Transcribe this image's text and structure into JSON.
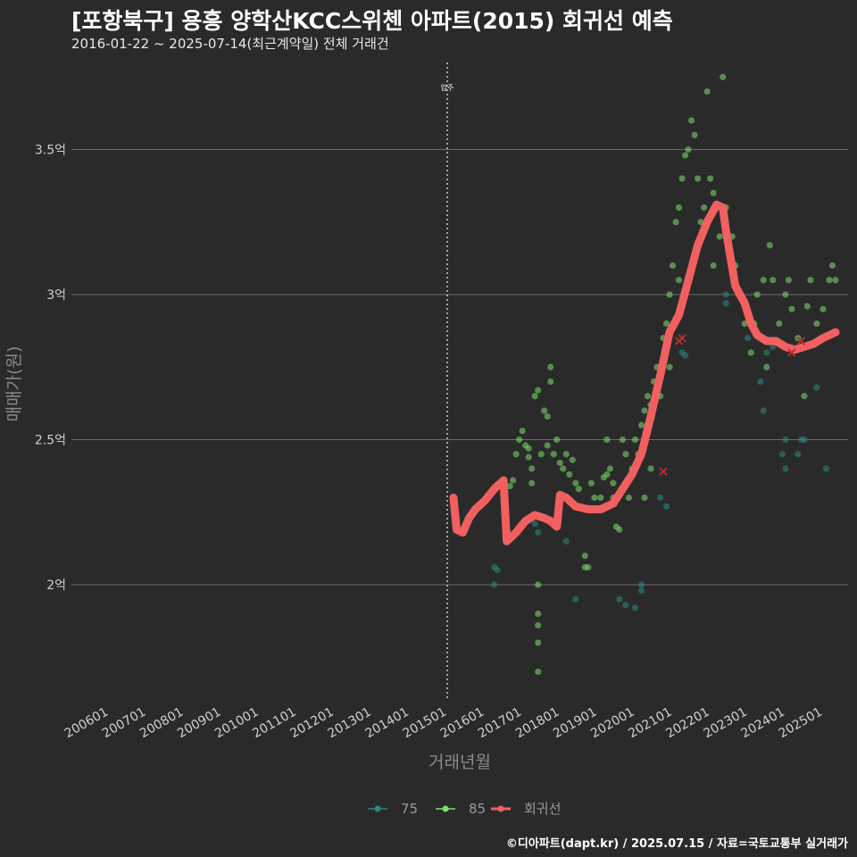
{
  "header": {
    "title": "[포항북구] 용흥 양학산KCC스위첸 아파트(2015) 회귀선 예측",
    "subtitle": "2016-01-22 ~ 2025-07-14(최근계약일) 전체 거래건"
  },
  "footer": {
    "caption": "©디아파트(dapt.kr) / 2025.07.15 / 자료=국토교통부 실거래가"
  },
  "colors": {
    "bg": "#2b2a2b",
    "s75": "#2a8a80",
    "s85": "#7ddf6e",
    "trend": "#f06060",
    "grid": "#6a6a6a"
  },
  "chart_data": {
    "type": "scatter",
    "xlabel": "거래년월",
    "ylabel": "매매가(원)",
    "ylim": [
      1.6,
      3.8
    ],
    "xlim": [
      "2005-01",
      "2025-09"
    ],
    "x_ticks": [
      "200601",
      "200701",
      "200801",
      "200901",
      "201001",
      "201101",
      "201201",
      "201301",
      "201401",
      "201501",
      "201601",
      "201701",
      "201801",
      "201901",
      "202001",
      "202101",
      "202201",
      "202301",
      "202401",
      "202501"
    ],
    "y_ticks": [
      {
        "value": 2.0,
        "label": "2억"
      },
      {
        "value": 2.5,
        "label": "2.5억"
      },
      {
        "value": 3.0,
        "label": "3억"
      },
      {
        "value": 3.5,
        "label": "3.5억"
      }
    ],
    "legend": {
      "position": "bottom",
      "items": [
        {
          "key": "75",
          "label": "75"
        },
        {
          "key": "85",
          "label": "85"
        },
        {
          "key": "trend",
          "label": "회귀선"
        }
      ]
    },
    "annotations": [
      {
        "x": "2015-01",
        "label": "입주",
        "style": "dotted-vline"
      }
    ],
    "series": [
      {
        "name": "75",
        "color": "#2a8a80",
        "points": [
          [
            "2016-04",
            2.06
          ],
          [
            "2016-04",
            2.0
          ],
          [
            "2016-05",
            2.05
          ],
          [
            "2017-05",
            2.21
          ],
          [
            "2017-06",
            2.18
          ],
          [
            "2018-03",
            2.15
          ],
          [
            "2018-06",
            1.95
          ],
          [
            "2019-08",
            1.95
          ],
          [
            "2019-10",
            1.93
          ],
          [
            "2020-01",
            1.92
          ],
          [
            "2020-03",
            2.0
          ],
          [
            "2020-03",
            1.98
          ],
          [
            "2020-09",
            2.3
          ],
          [
            "2020-11",
            2.27
          ],
          [
            "2021-04",
            2.8
          ],
          [
            "2021-05",
            2.79
          ],
          [
            "2022-06",
            2.97
          ],
          [
            "2022-06",
            3.0
          ],
          [
            "2023-01",
            2.85
          ],
          [
            "2023-05",
            2.7
          ],
          [
            "2023-06",
            2.6
          ],
          [
            "2023-07",
            2.8
          ],
          [
            "2023-12",
            2.45
          ],
          [
            "2024-01",
            2.4
          ],
          [
            "2024-01",
            2.5
          ],
          [
            "2024-05",
            2.45
          ],
          [
            "2024-06",
            2.5
          ],
          [
            "2024-07",
            2.5
          ],
          [
            "2025-02",
            2.4
          ],
          [
            "2024-11",
            2.68
          ],
          [
            "2023-09",
            2.82
          ]
        ]
      },
      {
        "name": "85",
        "color": "#7ddf6e",
        "points": [
          [
            "2016-07",
            2.3
          ],
          [
            "2016-09",
            2.34
          ],
          [
            "2016-10",
            2.36
          ],
          [
            "2016-11",
            2.45
          ],
          [
            "2016-12",
            2.5
          ],
          [
            "2017-01",
            2.53
          ],
          [
            "2017-02",
            2.48
          ],
          [
            "2017-03",
            2.47
          ],
          [
            "2017-03",
            2.44
          ],
          [
            "2017-04",
            2.4
          ],
          [
            "2017-04",
            2.35
          ],
          [
            "2017-05",
            2.65
          ],
          [
            "2017-06",
            2.67
          ],
          [
            "2017-07",
            2.45
          ],
          [
            "2017-08",
            2.6
          ],
          [
            "2017-09",
            2.58
          ],
          [
            "2017-09",
            2.48
          ],
          [
            "2017-10",
            2.75
          ],
          [
            "2017-10",
            2.7
          ],
          [
            "2017-11",
            2.45
          ],
          [
            "2017-12",
            2.5
          ],
          [
            "2018-01",
            2.42
          ],
          [
            "2018-02",
            2.4
          ],
          [
            "2018-03",
            2.45
          ],
          [
            "2018-04",
            2.38
          ],
          [
            "2018-05",
            2.43
          ],
          [
            "2018-06",
            2.35
          ],
          [
            "2018-07",
            2.33
          ],
          [
            "2018-09",
            2.1
          ],
          [
            "2018-10",
            2.06
          ],
          [
            "2018-11",
            2.35
          ],
          [
            "2018-12",
            2.3
          ],
          [
            "2019-02",
            2.3
          ],
          [
            "2019-03",
            2.37
          ],
          [
            "2019-04",
            2.38
          ],
          [
            "2019-05",
            2.4
          ],
          [
            "2019-06",
            2.3
          ],
          [
            "2019-07",
            2.2
          ],
          [
            "2019-08",
            2.19
          ],
          [
            "2019-09",
            2.5
          ],
          [
            "2019-10",
            2.45
          ],
          [
            "2019-11",
            2.3
          ],
          [
            "2019-12",
            2.4
          ],
          [
            "2020-01",
            2.5
          ],
          [
            "2020-02",
            2.45
          ],
          [
            "2020-03",
            2.55
          ],
          [
            "2020-04",
            2.6
          ],
          [
            "2020-05",
            2.65
          ],
          [
            "2020-06",
            2.62
          ],
          [
            "2020-07",
            2.7
          ],
          [
            "2020-08",
            2.75
          ],
          [
            "2020-09",
            2.65
          ],
          [
            "2020-10",
            2.85
          ],
          [
            "2020-11",
            2.9
          ],
          [
            "2020-12",
            3.0
          ],
          [
            "2021-01",
            3.1
          ],
          [
            "2021-02",
            3.25
          ],
          [
            "2021-03",
            3.3
          ],
          [
            "2021-04",
            3.4
          ],
          [
            "2021-05",
            3.48
          ],
          [
            "2021-06",
            3.5
          ],
          [
            "2021-07",
            3.6
          ],
          [
            "2021-08",
            3.55
          ],
          [
            "2021-09",
            3.4
          ],
          [
            "2021-10",
            3.25
          ],
          [
            "2021-11",
            3.3
          ],
          [
            "2021-12",
            3.7
          ],
          [
            "2022-01",
            3.4
          ],
          [
            "2022-02",
            3.35
          ],
          [
            "2022-03",
            3.3
          ],
          [
            "2022-04",
            3.2
          ],
          [
            "2022-05",
            3.75
          ],
          [
            "2022-06",
            3.3
          ],
          [
            "2022-08",
            3.2
          ],
          [
            "2022-09",
            3.1
          ],
          [
            "2022-10",
            3.0
          ],
          [
            "2022-12",
            2.9
          ],
          [
            "2023-02",
            2.8
          ],
          [
            "2023-04",
            3.0
          ],
          [
            "2023-06",
            3.05
          ],
          [
            "2023-08",
            3.17
          ],
          [
            "2023-09",
            3.05
          ],
          [
            "2023-11",
            2.9
          ],
          [
            "2024-01",
            3.0
          ],
          [
            "2024-02",
            3.05
          ],
          [
            "2024-03",
            2.95
          ],
          [
            "2024-05",
            2.85
          ],
          [
            "2024-07",
            2.65
          ],
          [
            "2024-08",
            2.96
          ],
          [
            "2024-09",
            3.05
          ],
          [
            "2024-11",
            2.9
          ],
          [
            "2025-01",
            2.95
          ],
          [
            "2025-03",
            3.05
          ],
          [
            "2025-04",
            3.1
          ],
          [
            "2025-05",
            3.05
          ],
          [
            "2025-01",
            2.85
          ],
          [
            "2023-07",
            2.75
          ],
          [
            "2023-03",
            2.9
          ],
          [
            "2020-06",
            2.4
          ],
          [
            "2020-04",
            2.3
          ],
          [
            "2017-06",
            1.9
          ],
          [
            "2017-06",
            1.86
          ],
          [
            "2017-06",
            1.8
          ],
          [
            "2017-06",
            1.7
          ],
          [
            "2017-06",
            2.0
          ],
          [
            "2018-09",
            2.06
          ],
          [
            "2019-04",
            2.5
          ],
          [
            "2019-06",
            2.35
          ],
          [
            "2021-03",
            3.05
          ],
          [
            "2022-02",
            3.1
          ],
          [
            "2020-12",
            2.75
          ]
        ]
      }
    ],
    "trend": [
      [
        "2015-03",
        2.3
      ],
      [
        "2015-04",
        2.19
      ],
      [
        "2015-06",
        2.18
      ],
      [
        "2015-08",
        2.23
      ],
      [
        "2015-10",
        2.26
      ],
      [
        "2016-01",
        2.29
      ],
      [
        "2016-04",
        2.33
      ],
      [
        "2016-07",
        2.36
      ],
      [
        "2016-08",
        2.15
      ],
      [
        "2016-11",
        2.18
      ],
      [
        "2017-02",
        2.22
      ],
      [
        "2017-05",
        2.24
      ],
      [
        "2017-08",
        2.23
      ],
      [
        "2017-10",
        2.22
      ],
      [
        "2017-12",
        2.2
      ],
      [
        "2018-01",
        2.31
      ],
      [
        "2018-03",
        2.3
      ],
      [
        "2018-06",
        2.27
      ],
      [
        "2018-10",
        2.26
      ],
      [
        "2019-02",
        2.26
      ],
      [
        "2019-06",
        2.28
      ],
      [
        "2019-09",
        2.33
      ],
      [
        "2019-12",
        2.38
      ],
      [
        "2020-03",
        2.45
      ],
      [
        "2020-06",
        2.58
      ],
      [
        "2020-09",
        2.72
      ],
      [
        "2020-12",
        2.87
      ],
      [
        "2021-03",
        2.93
      ],
      [
        "2021-06",
        3.05
      ],
      [
        "2021-09",
        3.17
      ],
      [
        "2021-12",
        3.25
      ],
      [
        "2022-03",
        3.31
      ],
      [
        "2022-05",
        3.3
      ],
      [
        "2022-06",
        3.22
      ],
      [
        "2022-09",
        3.03
      ],
      [
        "2022-12",
        2.97
      ],
      [
        "2023-02",
        2.9
      ],
      [
        "2023-04",
        2.86
      ],
      [
        "2023-07",
        2.84
      ],
      [
        "2023-10",
        2.84
      ],
      [
        "2024-01",
        2.82
      ],
      [
        "2024-04",
        2.81
      ],
      [
        "2024-07",
        2.82
      ],
      [
        "2024-10",
        2.83
      ],
      [
        "2025-01",
        2.85
      ],
      [
        "2025-05",
        2.87
      ]
    ],
    "markers": [
      [
        "2021-04",
        2.85
      ],
      [
        "2021-03",
        2.84
      ],
      [
        "2020-10",
        2.39
      ],
      [
        "2024-03",
        2.8
      ],
      [
        "2024-06",
        2.84
      ]
    ]
  }
}
